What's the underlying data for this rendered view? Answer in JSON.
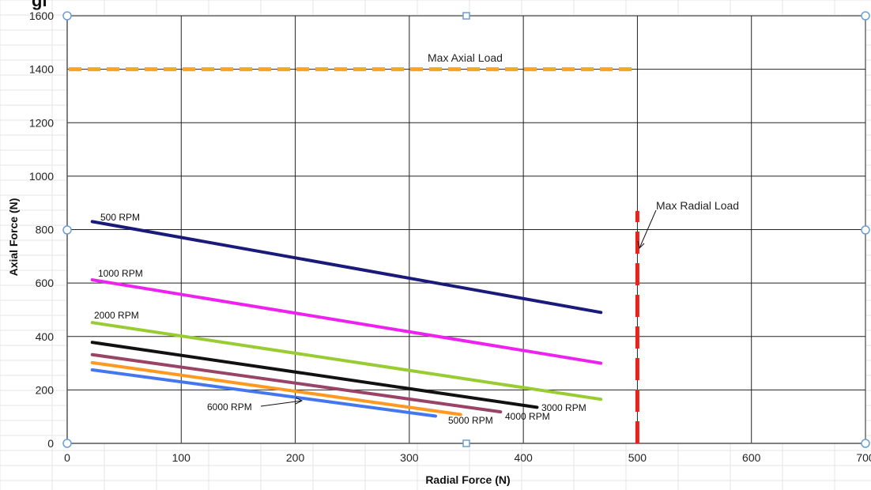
{
  "header": {
    "cutoff_text": "gi"
  },
  "chart_data": {
    "type": "line",
    "xlabel": "Radial Force (N)",
    "ylabel": "Axial Force (N)",
    "xlim": [
      0,
      700
    ],
    "ylim": [
      0,
      1600
    ],
    "xticks": [
      0,
      100,
      200,
      300,
      400,
      500,
      600,
      700
    ],
    "yticks": [
      0,
      200,
      400,
      600,
      800,
      1000,
      1200,
      1400,
      1600
    ],
    "grid": true,
    "series": [
      {
        "name": "500 RPM",
        "color": "#1a1a7a",
        "x": [
          22,
          468
        ],
        "y": [
          830,
          490
        ]
      },
      {
        "name": "1000 RPM",
        "color": "#ee22ee",
        "x": [
          22,
          468
        ],
        "y": [
          612,
          300
        ]
      },
      {
        "name": "2000 RPM",
        "color": "#99cc33",
        "x": [
          22,
          468
        ],
        "y": [
          452,
          165
        ]
      },
      {
        "name": "3000 RPM",
        "color": "#111111",
        "x": [
          22,
          412
        ],
        "y": [
          378,
          135
        ]
      },
      {
        "name": "4000 RPM",
        "color": "#994466",
        "x": [
          22,
          380
        ],
        "y": [
          332,
          118
        ]
      },
      {
        "name": "5000 RPM",
        "color": "#ff9922",
        "x": [
          22,
          345
        ],
        "y": [
          302,
          108
        ]
      },
      {
        "name": "6000 RPM",
        "color": "#4477ee",
        "x": [
          22,
          323
        ],
        "y": [
          275,
          102
        ]
      }
    ],
    "limits": [
      {
        "label": "Max Axial Load",
        "orientation": "horizontal",
        "value": 1400,
        "from": 0,
        "to": 495,
        "color": "#f5a623"
      },
      {
        "label": "Max Radial Load",
        "orientation": "vertical",
        "value": 500,
        "from": 0,
        "to": 870,
        "color": "#e8231c"
      }
    ]
  }
}
